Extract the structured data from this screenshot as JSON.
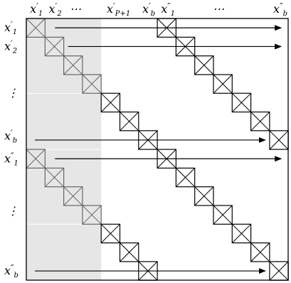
{
  "column_labels": [
    {
      "base": "x",
      "prime": "′",
      "sub": "1"
    },
    {
      "base": "x",
      "prime": "′",
      "sub": "2"
    },
    {
      "base": "⋯",
      "prime": "",
      "sub": ""
    },
    {
      "base": "x",
      "prime": "′",
      "sub": "P+1"
    },
    {
      "base": "x",
      "prime": "′",
      "sub": "b"
    },
    {
      "base": "x",
      "prime": "″",
      "sub": "1"
    },
    {
      "base": "⋯",
      "prime": "",
      "sub": ""
    },
    {
      "base": "x",
      "prime": "″",
      "sub": "b"
    }
  ],
  "row_labels": [
    {
      "base": "x",
      "prime": "′",
      "sub": "1"
    },
    {
      "base": "x",
      "prime": "′",
      "sub": "2"
    },
    {
      "base": "⋮",
      "prime": "",
      "sub": ""
    },
    {
      "base": "x",
      "prime": "′",
      "sub": "b"
    },
    {
      "base": "x",
      "prime": "″",
      "sub": "1"
    },
    {
      "base": "⋮",
      "prime": "",
      "sub": ""
    },
    {
      "base": "x",
      "prime": "″",
      "sub": "b"
    }
  ],
  "matrix": {
    "block_size_b": 7,
    "shaded_prefix_P_plus_1": 4,
    "colors": {
      "shade": "#e6e6e6",
      "line": "#000000",
      "shaded_line": "#666666"
    }
  }
}
